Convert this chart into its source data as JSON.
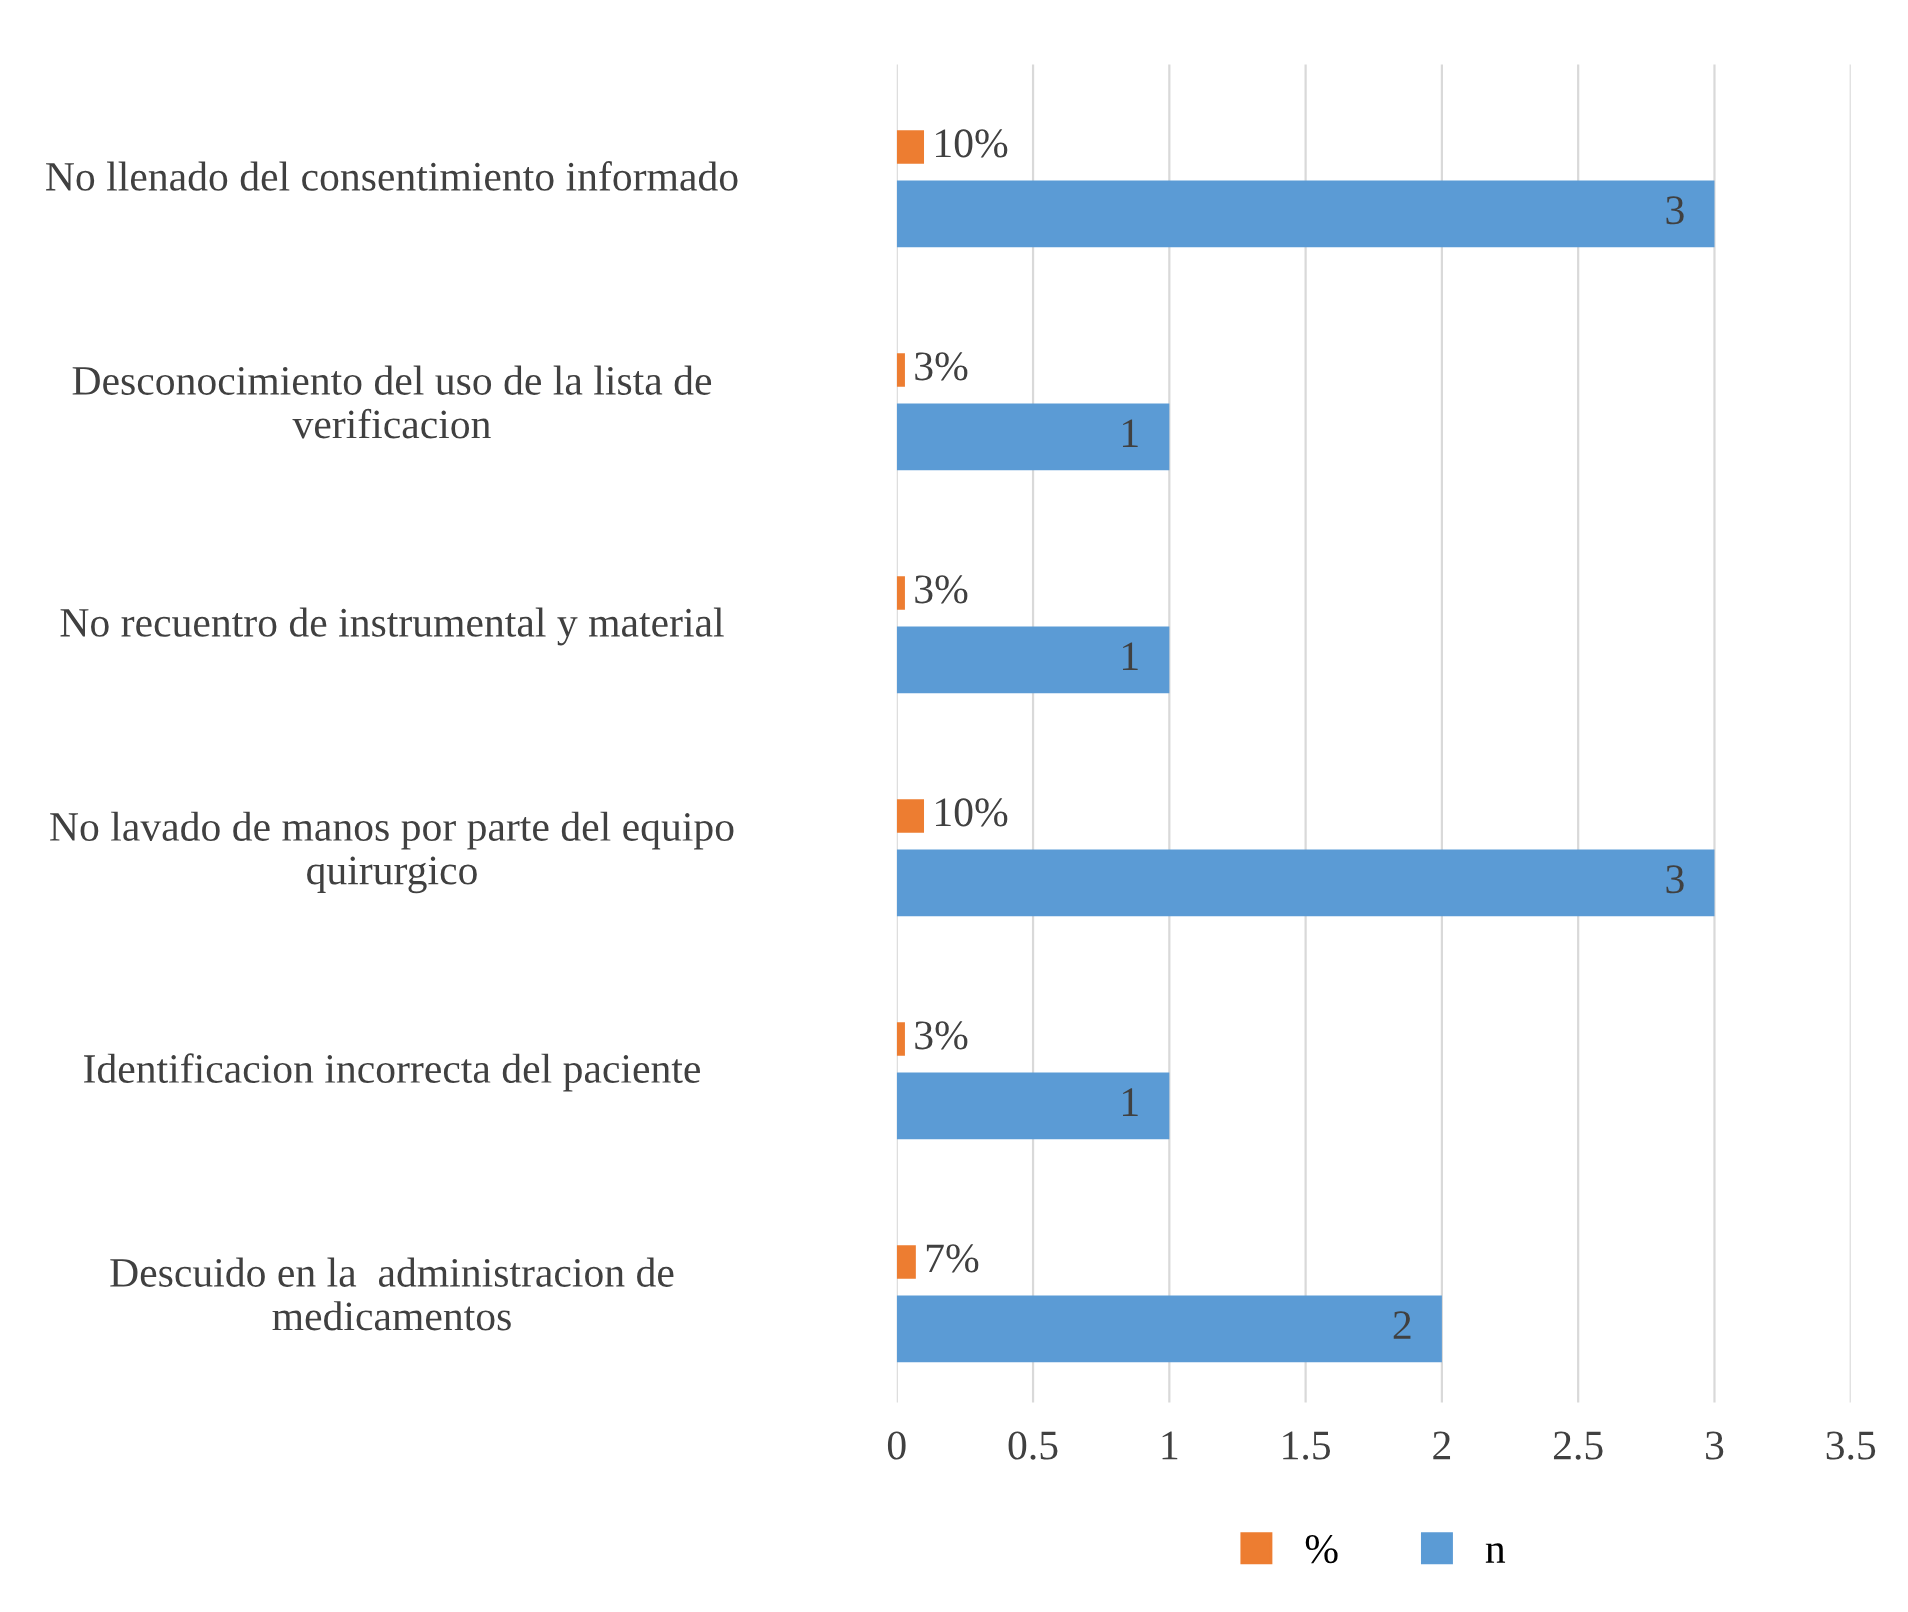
{
  "chart_data": {
    "type": "bar",
    "orientation": "horizontal",
    "categories": [
      "No llenado del consentimiento informado",
      "Desconocimiento del uso de la lista de\nverificacion",
      "No recuentro de instrumental y material",
      "No lavado de manos por parte del equipo\nquirurgico",
      "Identificacion incorrecta del paciente",
      "Descuido en la  administracion de\nmedicamentos"
    ],
    "series": [
      {
        "name": "%",
        "color": "#ed7d31",
        "values": [
          0.1,
          0.03,
          0.03,
          0.1,
          0.03,
          0.07
        ],
        "value_labels": [
          "10%",
          "3%",
          "3%",
          "10%",
          "3%",
          "7%"
        ]
      },
      {
        "name": "n",
        "color": "#5b9bd5",
        "values": [
          3,
          1,
          1,
          3,
          1,
          2
        ],
        "value_labels": [
          "3",
          "1",
          "1",
          "3",
          "1",
          "2"
        ]
      }
    ],
    "xlim": [
      0,
      3.5
    ],
    "xticks": [
      0,
      0.5,
      1,
      1.5,
      2,
      2.5,
      3,
      3.5
    ],
    "grid": "x",
    "legend": "bottom"
  }
}
